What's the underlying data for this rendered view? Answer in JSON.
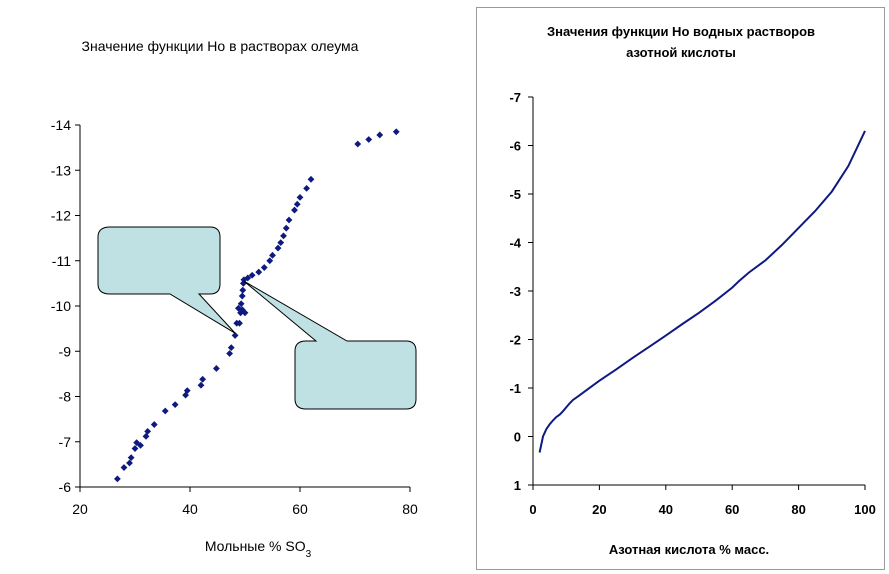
{
  "colors": {
    "series": "#0f1a80",
    "callout_fill": "#bfe1e3",
    "axis": "#000000",
    "border": "#9a9a9a"
  },
  "chart_data": [
    {
      "type": "scatter",
      "title": "Значение функции Но в растворах олеума",
      "xlabel": "Мольные % SO",
      "xlabel_sub": "3",
      "ylabel": "",
      "xlim": [
        20,
        80
      ],
      "ylim": [
        -6,
        -14
      ],
      "x_ticks": [
        "20",
        "40",
        "60",
        "80"
      ],
      "y_ticks": [
        "-6",
        "-7",
        "-8",
        "-9",
        "-10",
        "-11",
        "-12",
        "-13",
        "-14"
      ],
      "grid": false,
      "series": [
        {
          "marker": "diamond",
          "points": [
            [
              26.8,
              -6.18
            ],
            [
              28.0,
              -6.43
            ],
            [
              29.0,
              -6.53
            ],
            [
              29.3,
              -6.65
            ],
            [
              30.0,
              -6.85
            ],
            [
              30.3,
              -6.98
            ],
            [
              31.0,
              -6.92
            ],
            [
              32.0,
              -7.12
            ],
            [
              32.3,
              -7.23
            ],
            [
              33.5,
              -7.38
            ],
            [
              35.5,
              -7.68
            ],
            [
              37.3,
              -7.82
            ],
            [
              39.2,
              -8.03
            ],
            [
              39.5,
              -8.13
            ],
            [
              42.0,
              -8.25
            ],
            [
              42.3,
              -8.38
            ],
            [
              44.8,
              -8.62
            ],
            [
              47.2,
              -8.95
            ],
            [
              47.5,
              -9.08
            ],
            [
              48.2,
              -9.35
            ],
            [
              48.5,
              -9.62
            ],
            [
              48.8,
              -9.95
            ],
            [
              49.0,
              -9.62
            ],
            [
              49.2,
              -9.85
            ],
            [
              49.3,
              -10.05
            ],
            [
              49.5,
              -10.22
            ],
            [
              49.6,
              -10.35
            ],
            [
              49.7,
              -10.5
            ],
            [
              49.8,
              -10.58
            ],
            [
              49.5,
              -9.92
            ],
            [
              50.0,
              -9.85
            ],
            [
              50.5,
              -10.62
            ],
            [
              51.3,
              -10.68
            ],
            [
              52.5,
              -10.75
            ],
            [
              53.5,
              -10.85
            ],
            [
              54.5,
              -11.0
            ],
            [
              55.0,
              -11.12
            ],
            [
              56.0,
              -11.28
            ],
            [
              56.5,
              -11.4
            ],
            [
              57.0,
              -11.55
            ],
            [
              57.5,
              -11.72
            ],
            [
              58.0,
              -11.9
            ],
            [
              59.0,
              -12.12
            ],
            [
              59.5,
              -12.25
            ],
            [
              60.0,
              -12.4
            ],
            [
              61.2,
              -12.6
            ],
            [
              62.0,
              -12.8
            ],
            [
              70.5,
              -13.58
            ],
            [
              72.5,
              -13.68
            ],
            [
              74.5,
              -13.78
            ],
            [
              77.5,
              -13.85
            ]
          ]
        }
      ],
      "callouts": [
        {
          "text": ""
        },
        {
          "text": ""
        }
      ]
    },
    {
      "type": "line",
      "title": "Значения функции Но водных растворов азотной кислоты",
      "title_lines": [
        "Значения функции Но водных растворов",
        "азотной кислоты"
      ],
      "xlabel": "Азотная кислота % масс.",
      "ylabel": "",
      "xlim": [
        0,
        100
      ],
      "ylim": [
        1,
        -7
      ],
      "x_ticks": [
        "0",
        "20",
        "40",
        "60",
        "80",
        "100"
      ],
      "y_ticks": [
        "1",
        "0",
        "-1",
        "-2",
        "-3",
        "-4",
        "-5",
        "-6",
        "-7"
      ],
      "grid": false,
      "series": [
        {
          "points": [
            [
              2,
              0.33
            ],
            [
              3,
              0.0
            ],
            [
              4,
              -0.15
            ],
            [
              5,
              -0.25
            ],
            [
              6,
              -0.33
            ],
            [
              7,
              -0.4
            ],
            [
              8,
              -0.45
            ],
            [
              9,
              -0.52
            ],
            [
              10,
              -0.6
            ],
            [
              11,
              -0.68
            ],
            [
              12,
              -0.75
            ],
            [
              14,
              -0.85
            ],
            [
              16,
              -0.95
            ],
            [
              20,
              -1.15
            ],
            [
              25,
              -1.38
            ],
            [
              30,
              -1.62
            ],
            [
              35,
              -1.85
            ],
            [
              40,
              -2.08
            ],
            [
              45,
              -2.32
            ],
            [
              50,
              -2.55
            ],
            [
              55,
              -2.8
            ],
            [
              60,
              -3.07
            ],
            [
              62,
              -3.2
            ],
            [
              65,
              -3.38
            ],
            [
              70,
              -3.63
            ],
            [
              75,
              -3.95
            ],
            [
              80,
              -4.3
            ],
            [
              85,
              -4.65
            ],
            [
              90,
              -5.05
            ],
            [
              95,
              -5.58
            ],
            [
              100,
              -6.3
            ]
          ]
        }
      ]
    }
  ]
}
